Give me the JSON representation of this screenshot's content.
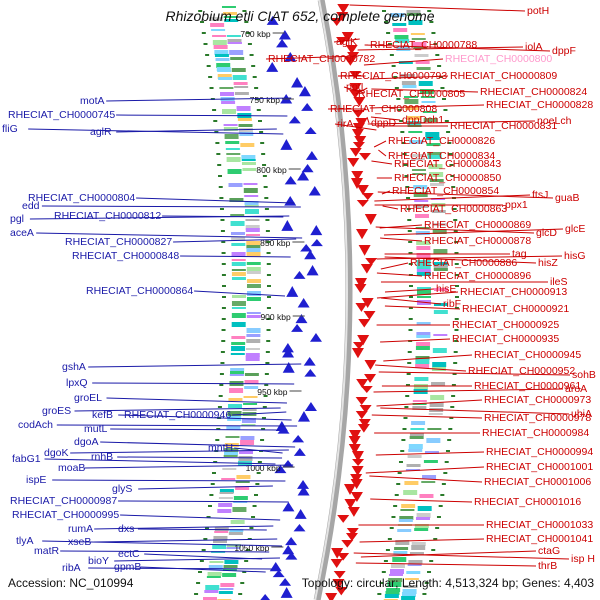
{
  "title": "Rhizobium etli CIAT 652, complete genome",
  "footer": {
    "accession": "Accession: NC_010994",
    "topology": "Topology: circular; Length: 4,513,324 bp; Genes: 4,403"
  },
  "colors": {
    "left_label": "#1a1aa8",
    "right_label": "#cc0000",
    "left_arrow": "#1f1fd0",
    "right_arrow": "#e01010",
    "backbone": "#a6a6a6",
    "tick": "#2a7a2a",
    "pink_label": "#ff99cc"
  },
  "scale_labels": [
    "700 kbp",
    "750 kbp",
    "800 kbp",
    "850 kbp",
    "900 kbp",
    "950 kbp",
    "1000 kbp",
    "1050 kbp"
  ],
  "left_labels": [
    "motA",
    "RHECIAT_CH0000745",
    "fliG",
    "aglR",
    "edd",
    "RHECIAT_CH0000804",
    "pgl",
    "RHECIAT_CH0000812",
    "aceA",
    "RHECIAT_CH0000827",
    "RHECIAT_CH0000848",
    "RHECIAT_CH0000864",
    "gshA",
    "lpxQ",
    "groEL",
    "groES",
    "codAch",
    "kefB",
    "RHECIAT_CH0000946",
    "mutL",
    "dgoA",
    "dgoK",
    "rnhB",
    "fabG1",
    "moaB",
    "ispE",
    "mntH",
    "glyS",
    "RHECIAT_CH0000987",
    "RHECIAT_CH0000995",
    "rumA",
    "dxs",
    "tlyA",
    "xseB",
    "matR",
    "ectC",
    "bioY",
    "ribA",
    "gpmB"
  ],
  "right_labels": [
    "potH",
    "aglK",
    "RHECIAT_CH0000788",
    "iolA",
    "RHECIAT_CH0000800",
    "dppF",
    "RHECIAT_CH0000782",
    "RHECIAT_CH0000793",
    "RHECIAT_CH0000809",
    "potI",
    "RHECIAT_CH0000805",
    "RHECIAT_CH0000824",
    "RHECIAT_CH0000808",
    "RHECIAT_CH0000828",
    "rirA",
    "dppD",
    "dppDch1",
    "RHECIAT_CH0000831",
    "noeLch",
    "RHECIAT_CH0000826",
    "RHECIAT_CH0000834",
    "RHECIAT_CH0000843",
    "RHECIAT_CH0000850",
    "RHECIAT_CH0000854",
    "ftsJ",
    "guaB",
    "RHECIAT_CH0000863",
    "ppx1",
    "RHECIAT_CH0000869",
    "glcE",
    "glcD",
    "RHECIAT_CH0000878",
    "tag",
    "hisG",
    "RHECIAT_CH0000886",
    "hisZ",
    "RHECIAT_CH0000896",
    "ileS",
    "hisE",
    "RHECIAT_CH0000913",
    "ribF",
    "RHECIAT_CH0000921",
    "RHECIAT_CH0000925",
    "RHECIAT_CH0000935",
    "RHECIAT_CH0000945",
    "RHECIAT_CH0000952",
    "sohB",
    "RHECIAT_CH0000961",
    "aroA",
    "RHECIAT_CH0000973",
    "ubiA",
    "RHECIAT_CH0000978",
    "RHECIAT_CH0000984",
    "RHECIAT_CH0000994",
    "RHECIAT_CH0001001",
    "RHECIAT_CH0001006",
    "RHECIAT_CH0001016",
    "RHECIAT_CH0001033",
    "RHECIAT_CH0001041",
    "ctaG",
    "isp H",
    "thrB"
  ]
}
